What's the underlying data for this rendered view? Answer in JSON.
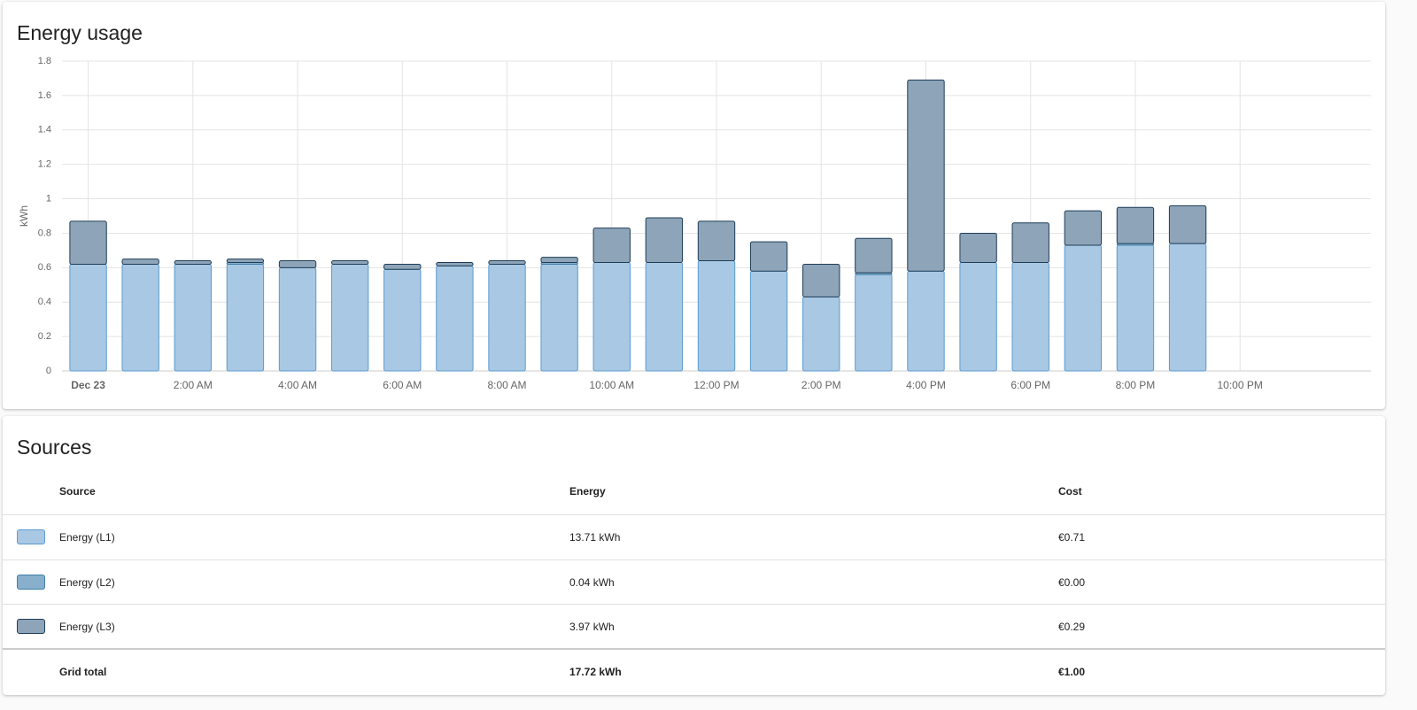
{
  "chart_data": {
    "type": "stacked_bar",
    "title": "Energy usage",
    "y_label": "kWh",
    "x": [
      0,
      1,
      2,
      3,
      4,
      5,
      6,
      7,
      8,
      9,
      10,
      11,
      12,
      13,
      14,
      15,
      16,
      17,
      18,
      19,
      20,
      21
    ],
    "xlim": [
      -0.5,
      24.5
    ],
    "xticks": [
      {
        "value": 0,
        "label": "Dec 23"
      },
      {
        "value": 2,
        "label": "2:00 AM"
      },
      {
        "value": 4,
        "label": "4:00 AM"
      },
      {
        "value": 6,
        "label": "6:00 AM"
      },
      {
        "value": 8,
        "label": "8:00 AM"
      },
      {
        "value": 10,
        "label": "10:00 AM"
      },
      {
        "value": 12,
        "label": "12:00 PM"
      },
      {
        "value": 14,
        "label": "2:00 PM"
      },
      {
        "value": 16,
        "label": "4:00 PM"
      },
      {
        "value": 18,
        "label": "6:00 PM"
      },
      {
        "value": 20,
        "label": "8:00 PM"
      },
      {
        "value": 22,
        "label": "10:00 PM"
      }
    ],
    "ylim": [
      0,
      1.8
    ],
    "yticks": [
      0,
      0.2,
      0.4,
      0.6,
      0.8,
      1,
      1.2,
      1.4,
      1.6,
      1.8
    ],
    "grid": true,
    "series": [
      {
        "name": "Energy (L1)",
        "color": "#a9c8e3",
        "border_color": "#5a9bd0",
        "values": [
          0.62,
          0.62,
          0.62,
          0.62,
          0.6,
          0.62,
          0.59,
          0.61,
          0.62,
          0.62,
          0.63,
          0.63,
          0.64,
          0.58,
          0.43,
          0.56,
          0.58,
          0.63,
          0.63,
          0.73,
          0.73,
          0.74
        ]
      },
      {
        "name": "Energy (L2)",
        "color": "#88b0cc",
        "border_color": "#3f7fa8",
        "values": [
          0,
          0,
          0,
          0.01,
          0,
          0,
          0,
          0,
          0,
          0.01,
          0,
          0,
          0,
          0,
          0,
          0.01,
          0,
          0,
          0,
          0,
          0.01,
          0
        ]
      },
      {
        "name": "Energy (L3)",
        "color": "#8ea4b8",
        "border_color": "#1f3d58",
        "values": [
          0.25,
          0.03,
          0.02,
          0.02,
          0.04,
          0.02,
          0.03,
          0.02,
          0.02,
          0.03,
          0.2,
          0.26,
          0.23,
          0.17,
          0.19,
          0.2,
          1.11,
          0.17,
          0.23,
          0.2,
          0.21,
          0.22
        ]
      }
    ]
  },
  "sources": {
    "title": "Sources",
    "columns": [
      "Source",
      "Energy",
      "Cost"
    ],
    "rows": [
      {
        "energy": "13.71 kWh",
        "cost": "€0.71"
      },
      {
        "energy": "0.04 kWh",
        "cost": "€0.00"
      },
      {
        "energy": "3.97 kWh",
        "cost": "€0.29"
      }
    ],
    "total": {
      "label": "Grid total",
      "energy": "17.72 kWh",
      "cost": "€1.00"
    }
  }
}
